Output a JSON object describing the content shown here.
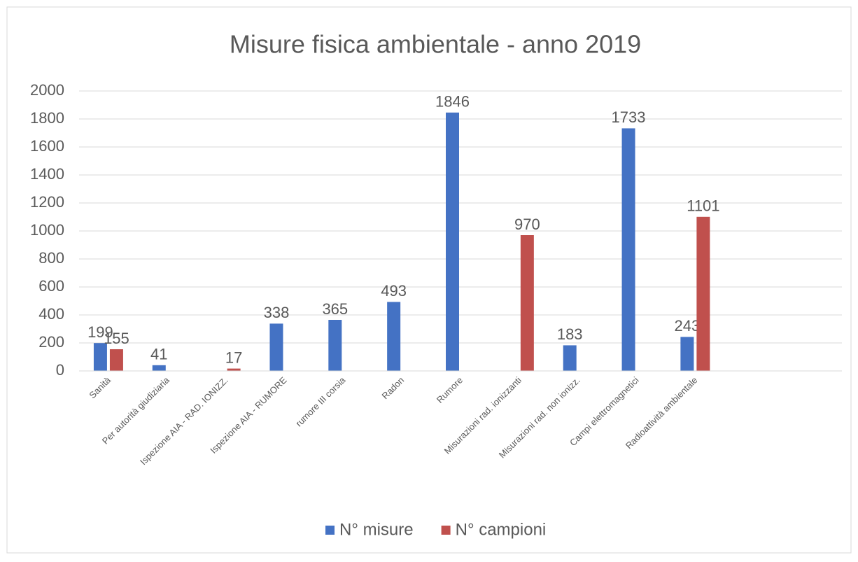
{
  "chart_data": {
    "type": "bar",
    "title": "Misure fisica ambientale - anno 2019",
    "categories": [
      "Sanità",
      "Per autorità giudiziaria",
      "Ispezione AIA - RAD. IONIZZ.",
      "Ispezione AIA - RUMORE",
      "rumore III corsia",
      "Radon",
      "Rumore",
      "Misurazioni rad. ionizzanti",
      "Misurazioni rad. non ionizz.",
      "Campi elettromagnetici",
      "Radioattività ambientale",
      null,
      null
    ],
    "series": [
      {
        "name": "N° misure",
        "color": "#4472c4",
        "values": [
          199,
          41,
          null,
          338,
          365,
          493,
          1846,
          null,
          183,
          1733,
          243,
          null,
          null
        ]
      },
      {
        "name": "N° campioni",
        "color": "#c0504d",
        "values": [
          155,
          null,
          17,
          null,
          null,
          null,
          null,
          970,
          null,
          null,
          1101,
          null,
          null
        ]
      }
    ],
    "ylim": [
      0,
      2000
    ],
    "yticks": [
      0,
      200,
      400,
      600,
      800,
      1000,
      1200,
      1400,
      1600,
      1800,
      2000
    ],
    "grid": true,
    "legend": "bottom"
  }
}
